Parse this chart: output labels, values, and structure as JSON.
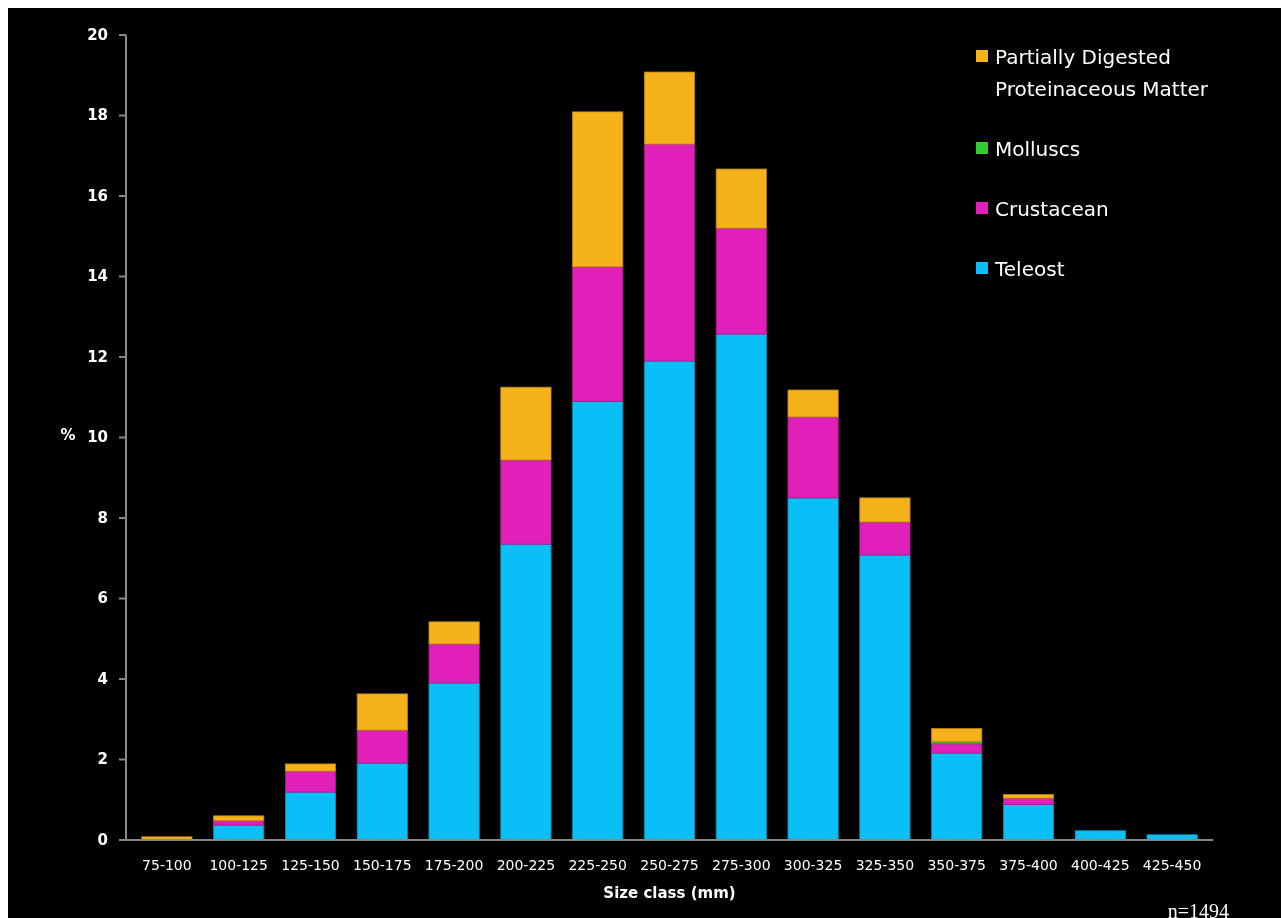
{
  "chart_data": {
    "type": "bar",
    "stacked": true,
    "xlabel": "Size class (mm)",
    "ylabel": "%",
    "categories": [
      "75-100",
      "100-125",
      "125-150",
      "150-175",
      "175-200",
      "200-225",
      "225-250",
      "250-275",
      "275-300",
      "300-325",
      "325-350",
      "350-375",
      "375-400",
      "400-425",
      "425-450"
    ],
    "series": [
      {
        "name": "Teleost",
        "color": "#0abff5",
        "values": [
          0,
          0.37,
          1.19,
          1.91,
          3.9,
          7.35,
          10.9,
          11.9,
          12.57,
          8.5,
          7.08,
          2.16,
          0.88,
          0.23,
          0.13
        ]
      },
      {
        "name": "Crustacean",
        "color": "#e020b8",
        "values": [
          0,
          0.11,
          0.52,
          0.82,
          0.97,
          2.09,
          3.34,
          5.39,
          2.63,
          2.01,
          0.82,
          0.23,
          0.16,
          0,
          0
        ]
      },
      {
        "name": "Molluscs",
        "color": "#33cc33",
        "values": [
          0,
          0,
          0,
          0,
          0,
          0,
          0,
          0,
          0,
          0,
          0,
          0.05,
          0,
          0,
          0
        ]
      },
      {
        "name": "Partially Digested Proteinaceous Matter",
        "color": "#f5b21a",
        "values": [
          0.08,
          0.12,
          0.18,
          0.9,
          0.55,
          1.81,
          3.85,
          1.79,
          1.47,
          0.67,
          0.6,
          0.33,
          0.09,
          0,
          0
        ]
      }
    ],
    "ylim": [
      0,
      20
    ],
    "yticks": [
      0,
      2,
      4,
      6,
      8,
      10,
      12,
      14,
      16,
      18,
      20
    ],
    "grid": false,
    "legend": "top right",
    "annotations": [
      "n=1494"
    ]
  }
}
